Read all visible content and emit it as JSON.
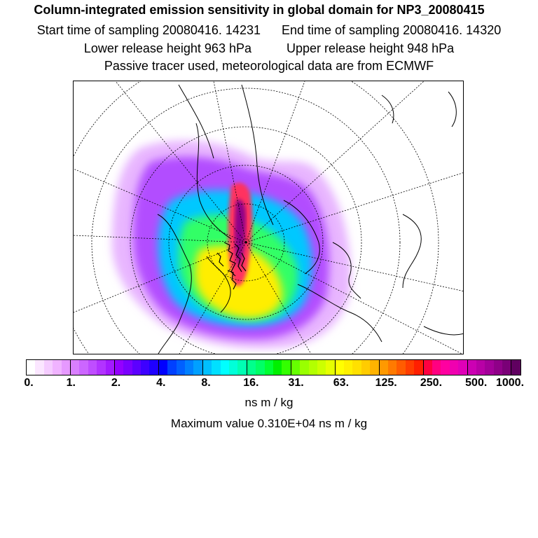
{
  "header": {
    "title": "Column-integrated emission sensitivity in global domain for NP3_20080415",
    "start_sampling": "Start time of sampling 20080416. 14231",
    "end_sampling": "End time of sampling 20080416. 14320",
    "lower_release": "Lower release height  963 hPa",
    "upper_release": "Upper release height  948 hPa",
    "tracer_note": "Passive tracer used, meteorological data are from ECMWF"
  },
  "colorbar": {
    "colors": [
      "#ffffff",
      "#fbe6ff",
      "#f5ccff",
      "#f0b3ff",
      "#e699ff",
      "#d97fff",
      "#cc66ff",
      "#bf4dff",
      "#b233ff",
      "#a31aff",
      "#9400ff",
      "#7a00ff",
      "#5c00ff",
      "#3d00ff",
      "#1f00ff",
      "#0000ff",
      "#0040ff",
      "#0060ff",
      "#0080ff",
      "#00a0ff",
      "#00c0ff",
      "#00e0ff",
      "#00ffff",
      "#00ffd9",
      "#00ffb3",
      "#00ff8c",
      "#00ff66",
      "#00ff33",
      "#00f000",
      "#33ff00",
      "#66ff00",
      "#99ff00",
      "#b3ff00",
      "#ccff00",
      "#e6ff00",
      "#ffff00",
      "#fff000",
      "#ffe000",
      "#ffcc00",
      "#ffb300",
      "#ff9900",
      "#ff7a00",
      "#ff5c00",
      "#ff3d00",
      "#ff1f00",
      "#ff0040",
      "#ff0080",
      "#ff00a0",
      "#f000b0",
      "#e000b8",
      "#cc00b3",
      "#b800a6",
      "#a30099",
      "#8f0088",
      "#7a0077",
      "#600060"
    ],
    "tick_labels": [
      "0.",
      "1.",
      "2.",
      "4.",
      "8.",
      "16.",
      "31.",
      "63.",
      "125.",
      "250.",
      "500.",
      "1000."
    ],
    "units": "ns m / kg"
  },
  "max_value_text": "Maximum value  0.310E+04 ns m / kg",
  "map": {
    "projection": "polar stereographic (north pole)",
    "coastline_color": "#000000",
    "graticule_color": "#000000"
  }
}
